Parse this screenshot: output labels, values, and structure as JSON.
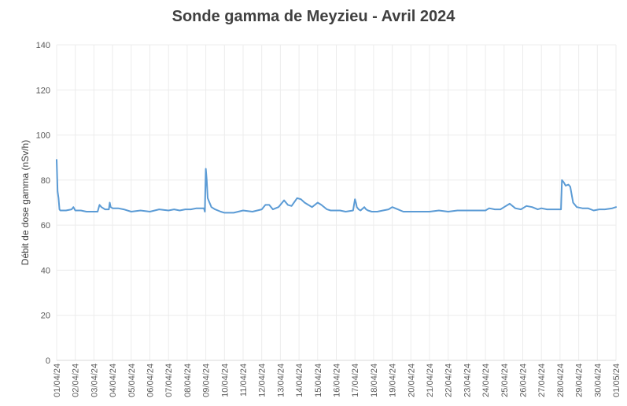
{
  "chart_data": {
    "type": "line",
    "title": "Sonde gamma de Meyzieu - Avril 2024",
    "xlabel": "",
    "ylabel": "Débit de dose gamma (nSv/h)",
    "ylim": [
      0,
      140
    ],
    "yticks": [
      "0",
      "20",
      "40",
      "60",
      "80",
      "100",
      "120",
      "140"
    ],
    "xlim": [
      1,
      31
    ],
    "xticks": [
      "01/04/24",
      "02/04/24",
      "03/04/24",
      "04/04/24",
      "05/04/24",
      "06/04/24",
      "07/04/24",
      "08/04/24",
      "09/04/24",
      "10/04/24",
      "11/04/24",
      "12/04/24",
      "13/04/24",
      "14/04/24",
      "15/04/24",
      "16/04/24",
      "17/04/24",
      "18/04/24",
      "19/04/24",
      "20/04/24",
      "21/04/24",
      "22/04/24",
      "23/04/24",
      "24/04/24",
      "25/04/24",
      "26/04/24",
      "27/04/24",
      "28/04/24",
      "29/04/24",
      "30/04/24",
      "01/05/24"
    ],
    "grid": true,
    "legend": "none",
    "color": "#5B9BD5",
    "series": [
      {
        "x": [
          1.0,
          1.05,
          1.1,
          1.15,
          1.2,
          1.3,
          1.5,
          1.8,
          1.9,
          2.0,
          2.3,
          2.6,
          2.9,
          3.2,
          3.3,
          3.4,
          3.6,
          3.8,
          3.85,
          3.9,
          4.0,
          4.3,
          4.6,
          5.0,
          5.5,
          6.0,
          6.5,
          7.0,
          7.3,
          7.6,
          7.9,
          8.2,
          8.5,
          8.9,
          8.95,
          9.0,
          9.05,
          9.1,
          9.2,
          9.3,
          9.5,
          9.8,
          10.0,
          10.5,
          11.0,
          11.5,
          12.0,
          12.2,
          12.4,
          12.6,
          12.9,
          13.2,
          13.4,
          13.6,
          13.9,
          14.1,
          14.3,
          14.5,
          14.7,
          15.0,
          15.2,
          15.5,
          15.7,
          15.9,
          16.2,
          16.5,
          16.9,
          17.0,
          17.05,
          17.1,
          17.2,
          17.3,
          17.5,
          17.6,
          17.7,
          17.9,
          18.2,
          18.5,
          18.8,
          19.0,
          19.3,
          19.6,
          19.9,
          20.2,
          20.5,
          21.0,
          21.5,
          22.0,
          22.5,
          23.0,
          23.5,
          24.0,
          24.2,
          24.5,
          24.8,
          25.0,
          25.3,
          25.6,
          25.9,
          26.2,
          26.5,
          26.8,
          27.0,
          27.3,
          27.6,
          27.9,
          28.0,
          28.05,
          28.1,
          28.2,
          28.3,
          28.45,
          28.55,
          28.7,
          28.9,
          29.2,
          29.5,
          29.8,
          30.1,
          30.4,
          30.8,
          31.0
        ],
        "y": [
          89,
          75,
          72,
          67,
          66.5,
          66.5,
          66.5,
          67,
          68,
          66.5,
          66.5,
          66,
          66,
          66,
          69,
          68,
          67,
          67,
          70,
          68,
          67.5,
          67.5,
          67,
          66,
          66.5,
          66,
          67,
          66.5,
          67,
          66.5,
          67,
          67,
          67.5,
          67.5,
          66,
          85,
          80,
          72,
          70,
          68,
          67,
          66,
          65.5,
          65.5,
          66.5,
          66,
          67,
          69,
          69,
          67,
          68,
          71,
          69,
          68.5,
          72,
          71.5,
          70,
          69,
          68,
          70,
          69,
          67,
          66.5,
          66.5,
          66.5,
          66,
          66.5,
          71.5,
          70,
          68,
          67,
          66.5,
          68,
          67,
          66.5,
          66,
          66,
          66.5,
          67,
          68,
          67,
          66,
          66,
          66,
          66,
          66,
          66.5,
          66,
          66.5,
          66.5,
          66.5,
          66.5,
          67.5,
          67,
          67,
          68,
          69.5,
          67.5,
          67,
          68.5,
          68,
          67,
          67.5,
          67,
          67,
          67,
          67,
          67,
          80,
          79,
          77.5,
          78,
          77,
          70,
          68,
          67.5,
          67.5,
          66.5,
          67,
          67,
          67.5,
          68
        ]
      }
    ]
  }
}
